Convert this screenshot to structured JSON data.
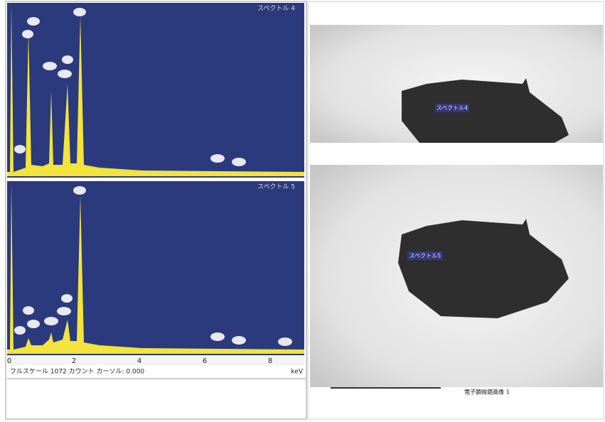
{
  "spectra": [
    {
      "label": "スペクトル 4"
    },
    {
      "label": "スペクトル 5",
      "axis": {
        "ticks": [
          "0",
          "2",
          "4",
          "6",
          "8"
        ],
        "unit": "keV"
      },
      "footer": "フルスケール 1072 カウント カーソル: 0.000"
    }
  ],
  "images": [
    {
      "label": "スペクトル4"
    },
    {
      "label": "スペクトル5",
      "caption": "電子顕微鏡画像 1"
    }
  ]
}
